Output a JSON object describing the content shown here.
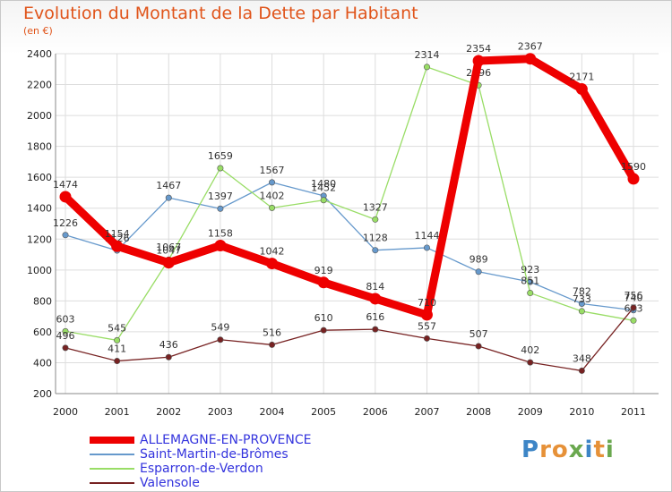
{
  "chart_data": {
    "type": "line",
    "title": "Evolution du Montant de la Dette par Habitant",
    "subtitle": "(en €)",
    "x": [
      "2000",
      "2001",
      "2002",
      "2003",
      "2004",
      "2005",
      "2006",
      "2007",
      "2008",
      "2009",
      "2010",
      "2011"
    ],
    "ylim": [
      200,
      2400
    ],
    "yticks": [
      200,
      400,
      600,
      800,
      1000,
      1200,
      1400,
      1600,
      1800,
      2000,
      2200,
      2400
    ],
    "grid": true,
    "legend_placement": "bottom-left",
    "series": [
      {
        "name": "ALLEMAGNE-EN-PROVENCE",
        "color": "#ee0000",
        "emphasis": true,
        "values": [
          1474,
          1154,
          1047,
          1158,
          1042,
          919,
          814,
          710,
          2354,
          2367,
          2171,
          1590
        ]
      },
      {
        "name": "Saint-Martin-de-Brômes",
        "color": "#6699cc",
        "values": [
          1226,
          1126,
          1467,
          1397,
          1567,
          1480,
          1128,
          1144,
          989,
          923,
          782,
          740
        ]
      },
      {
        "name": "Esparron-de-Verdon",
        "color": "#99dd66",
        "values": [
          603,
          545,
          1067,
          1659,
          1402,
          1452,
          1327,
          2314,
          2196,
          851,
          733,
          673
        ]
      },
      {
        "name": "Valensole",
        "color": "#772222",
        "values": [
          496,
          411,
          436,
          549,
          516,
          610,
          616,
          557,
          507,
          402,
          348,
          756
        ]
      }
    ]
  },
  "brand": {
    "text": "Proxiti",
    "letter_colors": [
      "#3d85c6",
      "#e69138",
      "#e69138",
      "#6aa84f",
      "#3d85c6",
      "#e69138",
      "#6aa84f"
    ]
  }
}
